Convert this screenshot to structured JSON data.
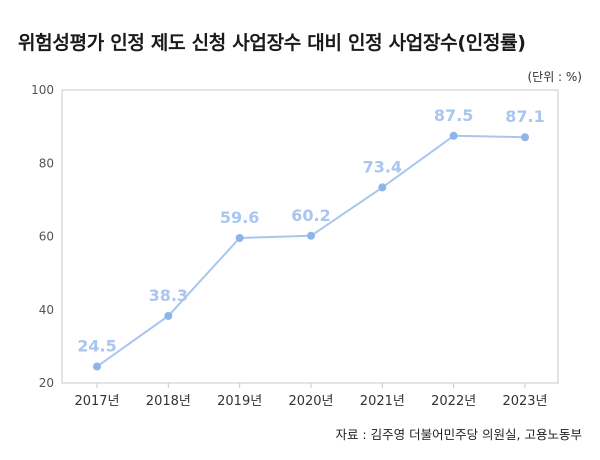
{
  "title": "위험성평가 인정 제도 신청 사업장수 대비 인정 사업장수(인정률)",
  "unit_note": "(단위 : %)",
  "source": "자료 : 김주영 더불어민주당 의원실, 고용노동부",
  "colors": {
    "line": "#a9c6f0",
    "point": "#8fb4ea",
    "label": "#a9c6f0",
    "plot_border": "#c8c8c8"
  },
  "chart_data": {
    "type": "line",
    "title": "위험성평가 인정 제도 신청 사업장수 대비 인정 사업장수(인정률)",
    "categories": [
      "2017년",
      "2018년",
      "2019년",
      "2020년",
      "2021년",
      "2022년",
      "2023년"
    ],
    "series": [
      {
        "values": [
          24.5,
          38.3,
          59.6,
          60.2,
          73.4,
          87.5,
          87.1
        ]
      }
    ],
    "value_labels": [
      "24.5",
      "38.3",
      "59.6",
      "60.2",
      "73.4",
      "87.5",
      "87.1"
    ],
    "ylim": [
      20,
      100
    ],
    "yticks": [
      20,
      40,
      60,
      80,
      100
    ],
    "grid": false,
    "xlabel": "",
    "ylabel": ""
  }
}
